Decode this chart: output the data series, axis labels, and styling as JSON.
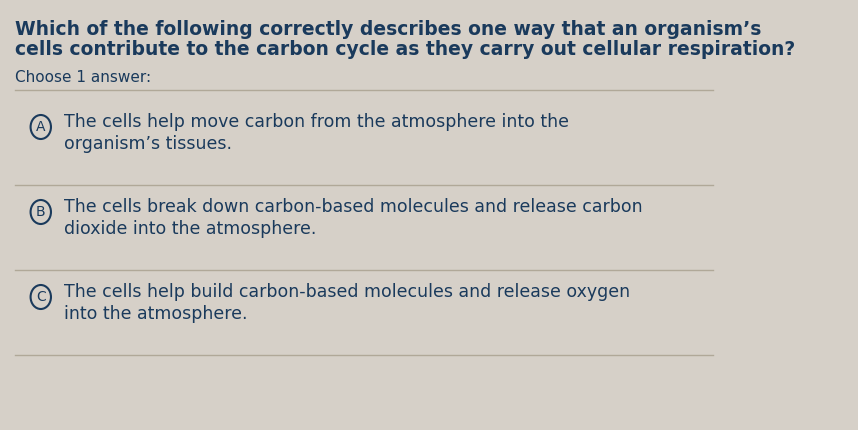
{
  "title_line1": "Which of the following correctly describes one way that an organism’s",
  "title_line2": "cells contribute to the carbon cycle as they carry out cellular respiration?",
  "subtitle": "Choose 1 answer:",
  "options": [
    {
      "label": "A",
      "line1": "The cells help move carbon from the atmosphere into the",
      "line2": "organism’s tissues."
    },
    {
      "label": "B",
      "line1": "The cells break down carbon-based molecules and release carbon",
      "line2": "dioxide into the atmosphere."
    },
    {
      "label": "C",
      "line1": "The cells help build carbon-based molecules and release oxygen",
      "line2": "into the atmosphere."
    }
  ],
  "bg_color": "#d6d0c8",
  "text_color": "#1a3a5c",
  "circle_color": "#1a3a5c",
  "divider_color": "#b0a898",
  "title_fontsize": 13.5,
  "subtitle_fontsize": 11,
  "option_fontsize": 12.5,
  "label_fontsize": 10
}
